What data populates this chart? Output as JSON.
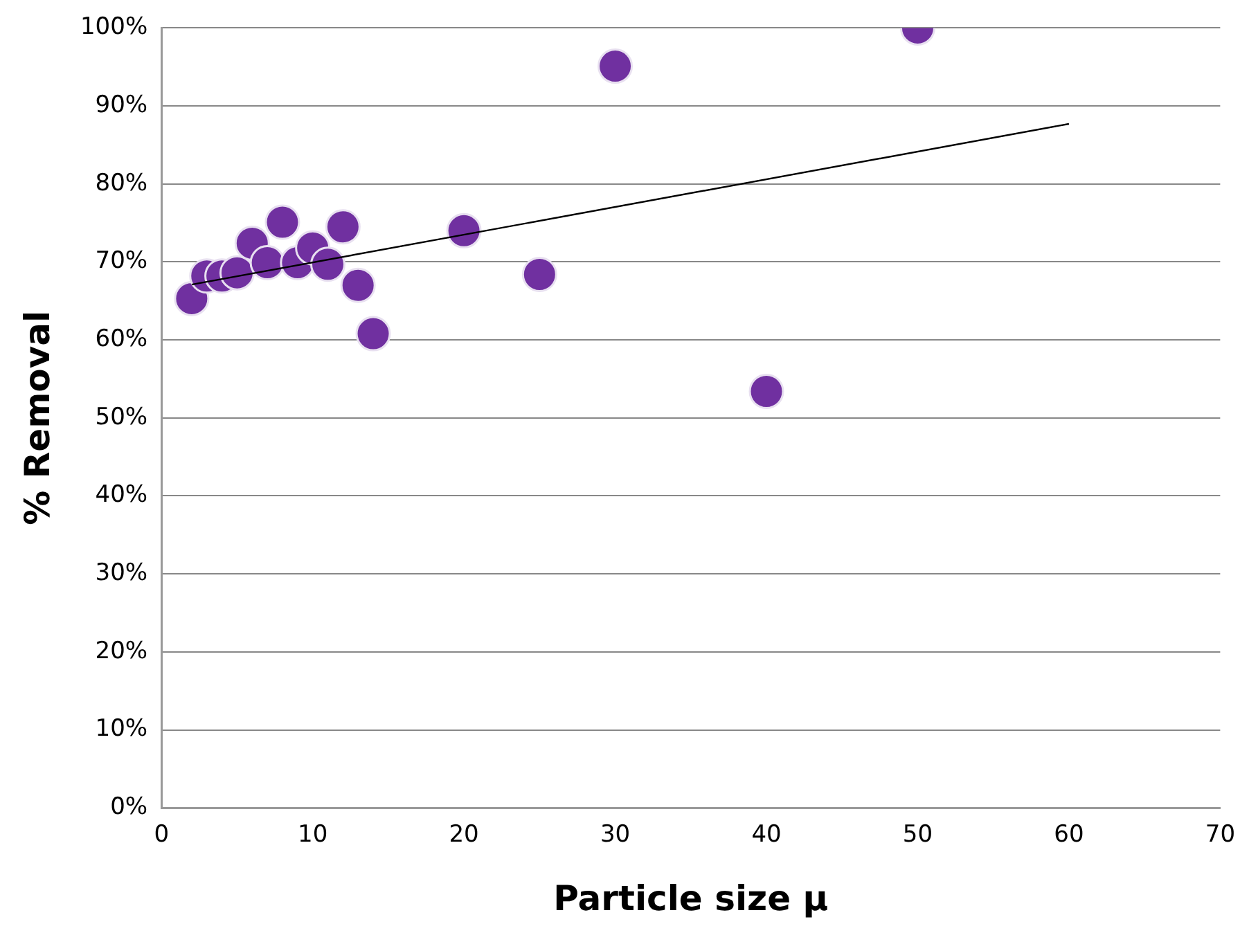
{
  "chart_data": {
    "type": "scatter",
    "xlabel": "Particle size μ",
    "ylabel": "% Removal",
    "xlim": [
      0,
      70
    ],
    "xticks": [
      0,
      10,
      20,
      30,
      40,
      50,
      60,
      70
    ],
    "ylim": [
      0,
      1
    ],
    "yticks": [
      {
        "value": 0,
        "label": "0%"
      },
      {
        "value": 0.1,
        "label": "10%"
      },
      {
        "value": 0.2,
        "label": "20%"
      },
      {
        "value": 0.3,
        "label": "30%"
      },
      {
        "value": 0.4,
        "label": "40%"
      },
      {
        "value": 0.5,
        "label": "50%"
      },
      {
        "value": 0.6,
        "label": "60%"
      },
      {
        "value": 0.7,
        "label": "70%"
      },
      {
        "value": 0.8,
        "label": "80%"
      },
      {
        "value": 0.9,
        "label": "90%"
      },
      {
        "value": 1,
        "label": "100%"
      }
    ],
    "grid": "y",
    "legend": false,
    "marker": "circle",
    "series": [
      {
        "color": "#7030a0",
        "x": [
          2,
          3,
          4,
          5,
          6,
          7,
          8,
          9,
          10,
          11,
          12,
          13,
          14,
          20,
          25,
          30,
          40,
          50
        ],
        "values": [
          0.653,
          0.682,
          0.682,
          0.686,
          0.724,
          0.699,
          0.751,
          0.699,
          0.718,
          0.697,
          0.745,
          0.67,
          0.608,
          0.74,
          0.684,
          0.951,
          0.534,
          1.0
        ]
      },
      {
        "type": "line",
        "color": "#000000",
        "marker": "none",
        "x": [
          2,
          60
        ],
        "values": [
          0.671,
          0.877
        ]
      }
    ]
  }
}
